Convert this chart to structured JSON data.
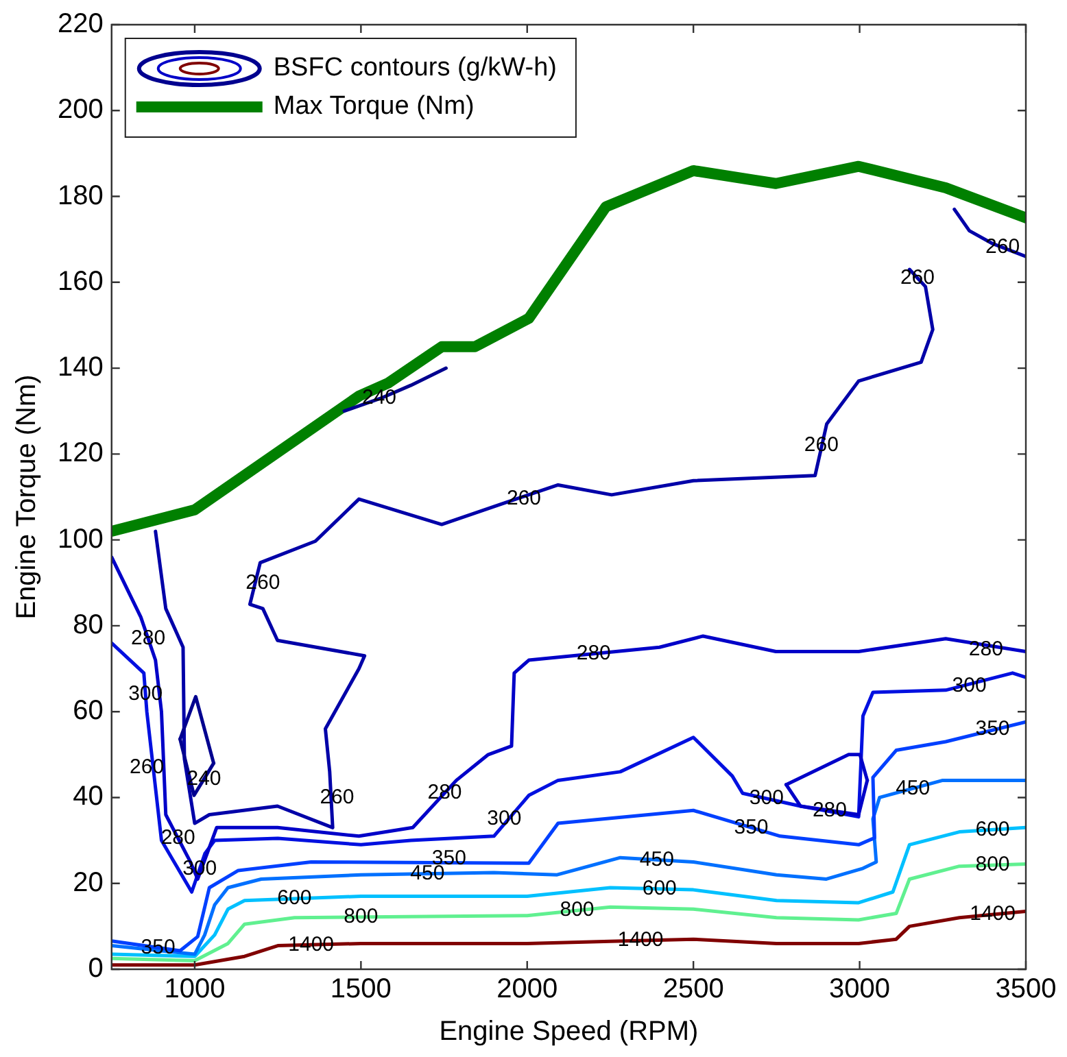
{
  "chart_data": {
    "type": "line",
    "xlabel": "Engine Speed (RPM)",
    "ylabel": "Engine Torque (Nm)",
    "xlim": [
      750,
      3500
    ],
    "xticks": [
      1000,
      1500,
      2000,
      2500,
      3000,
      3500
    ],
    "ylim": [
      0,
      220
    ],
    "yticks": [
      0,
      20,
      40,
      60,
      80,
      100,
      120,
      140,
      160,
      180,
      200,
      220
    ],
    "legend": "top left",
    "series": [
      {
        "name": "BSFC contours (g/kW-h)",
        "color": "#00008f",
        "x": [
          1450,
          1560,
          1650,
          1756
        ],
        "values": [
          130,
          133,
          136,
          140
        ]
      },
      {
        "color": "#00008f",
        "x": [
          956,
          1003,
          1057
        ],
        "values": [
          53.6,
          63.5,
          48
        ]
      },
      {
        "color": "#00008f",
        "x": [
          956,
          998,
          1057
        ],
        "values": [
          53.6,
          40.5,
          48
        ]
      },
      {
        "color": "#0000a8",
        "x": [
          882,
          913,
          965,
          969,
          1000,
          1044,
          1249,
          1415,
          1406,
          1393,
          1494,
          1511,
          1249,
          1205,
          1166,
          1197,
          1363,
          1494,
          1743,
          1931,
          2093,
          2254,
          2500,
          2866,
          2901,
          2997,
          3185,
          3220,
          3198,
          3150
        ],
        "values": [
          102,
          84,
          75,
          49,
          34,
          36,
          38,
          33,
          46,
          56,
          70,
          73,
          76.6,
          84,
          85,
          94.7,
          99.7,
          109.5,
          103.6,
          108.6,
          112.8,
          110.5,
          113.8,
          115,
          127,
          137,
          141.4,
          149,
          159,
          163
        ]
      },
      {
        "color": "#0000a8",
        "x": [
          3285,
          3330,
          3400,
          3500
        ],
        "values": [
          177,
          172,
          169,
          166
        ]
      },
      {
        "color": "#0000c8",
        "x": [
          750,
          838,
          882,
          900,
          913,
          987,
          1009,
          1066,
          1249,
          1494,
          1656,
          1787,
          1883,
          1953,
          1961,
          2005,
          2398,
          2529,
          2748,
          2997,
          3259,
          3500
        ],
        "values": [
          96,
          82,
          72,
          60,
          36,
          25,
          21,
          33,
          33,
          31,
          33,
          44,
          50,
          52,
          69,
          72,
          75,
          77.6,
          74,
          74,
          77,
          74
        ]
      },
      {
        "color": "#0000c8",
        "x": [
          2779,
          2967,
          3001,
          3023
        ],
        "values": [
          43,
          50,
          50,
          44
        ]
      },
      {
        "color": "#0000c8",
        "x": [
          2779,
          2822,
          2997,
          3023
        ],
        "values": [
          43,
          38,
          36,
          44
        ]
      },
      {
        "color": "#0010e0",
        "x": [
          750,
          847,
          856,
          900,
          991,
          1031,
          1060,
          1250,
          1500,
          1650,
          1900,
          2005,
          2093,
          2280,
          2500,
          2617,
          2648,
          2822,
          2997,
          3010,
          3040,
          3259,
          3460,
          3500
        ],
        "values": [
          76,
          69,
          60,
          30,
          18,
          27,
          30,
          30.5,
          29,
          30,
          31,
          40.5,
          44,
          46,
          54,
          45,
          41,
          38,
          35.5,
          59,
          64.5,
          65,
          69,
          68
        ]
      },
      {
        "color": "#0040ff",
        "x": [
          750,
          956,
          1009,
          1044,
          1131,
          1350,
          2005,
          2093,
          2500,
          2761,
          2997,
          3045,
          3040,
          3110,
          3259,
          3500
        ],
        "values": [
          6.6,
          4.3,
          7.6,
          19,
          23,
          25,
          24.7,
          34,
          37,
          31,
          29,
          30.6,
          44.7,
          51,
          53,
          57.6
        ]
      },
      {
        "color": "#0070ff",
        "x": [
          750,
          1000,
          1030,
          1060,
          1100,
          1200,
          1500,
          1900,
          2090,
          2280,
          2500,
          2750,
          2900,
          3010,
          3050,
          3040,
          3060,
          3250,
          3500
        ],
        "values": [
          5.5,
          3.5,
          8,
          15,
          19,
          21,
          22,
          22.5,
          22,
          26,
          25,
          22,
          21,
          23.5,
          25,
          35,
          40,
          44,
          44
        ]
      },
      {
        "color": "#00c0ff",
        "x": [
          750,
          1000,
          1060,
          1100,
          1150,
          1500,
          2000,
          2250,
          2500,
          2750,
          2997,
          3100,
          3150,
          3300,
          3500
        ],
        "values": [
          3.5,
          3,
          8,
          14,
          16,
          17,
          17,
          19,
          18.5,
          16,
          15.5,
          18,
          29,
          32,
          33
        ]
      },
      {
        "color": "#60f090",
        "x": [
          750,
          1000,
          1100,
          1150,
          1300,
          2000,
          2250,
          2500,
          2750,
          2997,
          3110,
          3150,
          3300,
          3500
        ],
        "values": [
          2.5,
          2,
          6,
          10.5,
          12,
          12.5,
          14.5,
          14,
          12,
          11.5,
          13,
          21,
          24,
          24.5
        ]
      },
      {
        "color": "#800000",
        "x": [
          750,
          1000,
          1150,
          1250,
          1500,
          2000,
          2250,
          2500,
          2750,
          2997,
          3110,
          3150,
          3300,
          3500
        ],
        "values": [
          1,
          1,
          3,
          5.5,
          6,
          6,
          6.5,
          7,
          6,
          6,
          7,
          10,
          12,
          13.5
        ]
      },
      {
        "name": "Max Torque (Nm)",
        "color": "#008000",
        "x": [
          750,
          1000,
          1494,
          1581,
          1743,
          1843,
          2005,
          2237,
          2500,
          2748,
          2997,
          3259,
          3500
        ],
        "values": [
          102,
          107,
          133.5,
          136.5,
          145,
          145,
          151.6,
          177.6,
          186,
          183,
          187,
          182,
          175
        ]
      }
    ],
    "annotations": [
      {
        "text": "240",
        "x": 1555,
        "y": 133
      },
      {
        "text": "260",
        "x": 1990,
        "y": 109.5
      },
      {
        "text": "260",
        "x": 2885,
        "y": 122
      },
      {
        "text": "260",
        "x": 3174,
        "y": 161
      },
      {
        "text": "260",
        "x": 3430,
        "y": 168.1
      },
      {
        "text": "260",
        "x": 1205,
        "y": 90
      },
      {
        "text": "280",
        "x": 860,
        "y": 77
      },
      {
        "text": "300",
        "x": 852,
        "y": 64
      },
      {
        "text": "260",
        "x": 856,
        "y": 47
      },
      {
        "text": "240",
        "x": 1028,
        "y": 44.3
      },
      {
        "text": "260",
        "x": 1428,
        "y": 40
      },
      {
        "text": "280",
        "x": 1752,
        "y": 41
      },
      {
        "text": "300",
        "x": 1931,
        "y": 35
      },
      {
        "text": "350",
        "x": 1765,
        "y": 25.7
      },
      {
        "text": "450",
        "x": 1700,
        "y": 22.25
      },
      {
        "text": "600",
        "x": 1300,
        "y": 16.43
      },
      {
        "text": "800",
        "x": 1500,
        "y": 12.1
      },
      {
        "text": "1400",
        "x": 1350,
        "y": 5.7
      },
      {
        "text": "350",
        "x": 890,
        "y": 5
      },
      {
        "text": "280",
        "x": 950,
        "y": 30.5
      },
      {
        "text": "300",
        "x": 1015,
        "y": 23.4
      },
      {
        "text": "280",
        "x": 2200,
        "y": 73.5
      },
      {
        "text": "280",
        "x": 3380,
        "y": 74.5
      },
      {
        "text": "300",
        "x": 3330,
        "y": 66
      },
      {
        "text": "350",
        "x": 3400,
        "y": 56
      },
      {
        "text": "300",
        "x": 2720,
        "y": 39.8
      },
      {
        "text": "280",
        "x": 2910,
        "y": 37
      },
      {
        "text": "350",
        "x": 2674,
        "y": 33
      },
      {
        "text": "450",
        "x": 2390,
        "y": 25.5
      },
      {
        "text": "600",
        "x": 2398,
        "y": 18.7
      },
      {
        "text": "800",
        "x": 2150,
        "y": 13.7
      },
      {
        "text": "1400",
        "x": 2341,
        "y": 6.7
      },
      {
        "text": "450",
        "x": 3160,
        "y": 42
      },
      {
        "text": "600",
        "x": 3400,
        "y": 32.5
      },
      {
        "text": "800",
        "x": 3400,
        "y": 24.25
      },
      {
        "text": "1400",
        "x": 3400,
        "y": 12.75
      }
    ]
  }
}
